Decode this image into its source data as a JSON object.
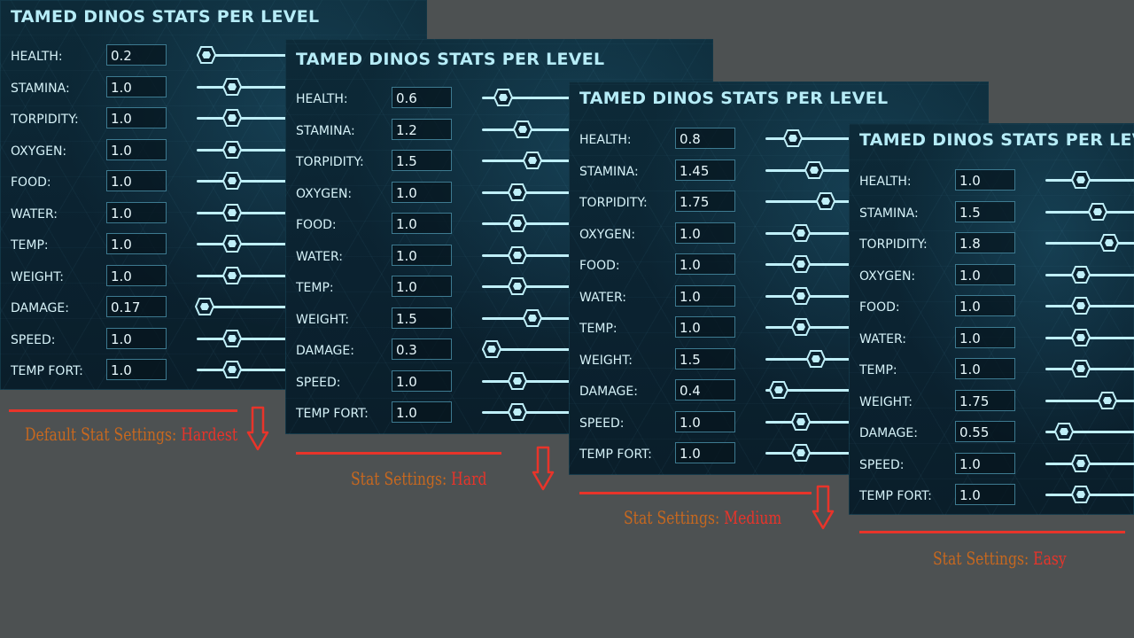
{
  "panels": [
    {
      "title": "TAMED DINOS STATS PER LEVEL",
      "caption_prefix": "Default Stat Settings: ",
      "difficulty": "Hardest",
      "stats": [
        {
          "label": "HEALTH:",
          "value": "0.2",
          "level": 0.1
        },
        {
          "label": "STAMINA:",
          "value": "1.0",
          "level": 0.36
        },
        {
          "label": "TORPIDITY:",
          "value": "1.0",
          "level": 0.36
        },
        {
          "label": "OXYGEN:",
          "value": "1.0",
          "level": 0.36
        },
        {
          "label": "FOOD:",
          "value": "1.0",
          "level": 0.36
        },
        {
          "label": "WATER:",
          "value": "1.0",
          "level": 0.36
        },
        {
          "label": "TEMP:",
          "value": "1.0",
          "level": 0.36
        },
        {
          "label": "WEIGHT:",
          "value": "1.0",
          "level": 0.36
        },
        {
          "label": "DAMAGE:",
          "value": "0.17",
          "level": 0.08
        },
        {
          "label": "SPEED:",
          "value": "1.0",
          "level": 0.36
        },
        {
          "label": "TEMP FORT:",
          "value": "1.0",
          "level": 0.36
        }
      ]
    },
    {
      "title": "TAMED DINOS STATS PER LEVEL",
      "caption_prefix": "Stat Settings: ",
      "difficulty": "Hard",
      "stats": [
        {
          "label": "HEALTH:",
          "value": "0.6",
          "level": 0.22
        },
        {
          "label": "STAMINA:",
          "value": "1.2",
          "level": 0.42
        },
        {
          "label": "TORPIDITY:",
          "value": "1.5",
          "level": 0.52
        },
        {
          "label": "OXYGEN:",
          "value": "1.0",
          "level": 0.36
        },
        {
          "label": "FOOD:",
          "value": "1.0",
          "level": 0.36
        },
        {
          "label": "WATER:",
          "value": "1.0",
          "level": 0.36
        },
        {
          "label": "TEMP:",
          "value": "1.0",
          "level": 0.36
        },
        {
          "label": "WEIGHT:",
          "value": "1.5",
          "level": 0.52
        },
        {
          "label": "DAMAGE:",
          "value": "0.3",
          "level": 0.1
        },
        {
          "label": "SPEED:",
          "value": "1.0",
          "level": 0.36
        },
        {
          "label": "TEMP FORT:",
          "value": "1.0",
          "level": 0.36
        }
      ]
    },
    {
      "title": "TAMED DINOS STATS PER LEVEL",
      "caption_prefix": "Stat Settings: ",
      "difficulty": "Medium",
      "stats": [
        {
          "label": "HEALTH:",
          "value": "0.8",
          "level": 0.28
        },
        {
          "label": "STAMINA:",
          "value": "1.45",
          "level": 0.5
        },
        {
          "label": "TORPIDITY:",
          "value": "1.75",
          "level": 0.62
        },
        {
          "label": "OXYGEN:",
          "value": "1.0",
          "level": 0.36
        },
        {
          "label": "FOOD:",
          "value": "1.0",
          "level": 0.36
        },
        {
          "label": "WATER:",
          "value": "1.0",
          "level": 0.36
        },
        {
          "label": "TEMP:",
          "value": "1.0",
          "level": 0.36
        },
        {
          "label": "WEIGHT:",
          "value": "1.5",
          "level": 0.52
        },
        {
          "label": "DAMAGE:",
          "value": "0.4",
          "level": 0.14
        },
        {
          "label": "SPEED:",
          "value": "1.0",
          "level": 0.36
        },
        {
          "label": "TEMP FORT:",
          "value": "1.0",
          "level": 0.36
        }
      ]
    },
    {
      "title": "TAMED DINOS STATS PER LEVEL",
      "caption_prefix": "Stat Settings: ",
      "difficulty": "Easy",
      "stats": [
        {
          "label": "HEALTH:",
          "value": "1.0",
          "level": 0.36
        },
        {
          "label": "STAMINA:",
          "value": "1.5",
          "level": 0.54
        },
        {
          "label": "TORPIDITY:",
          "value": "1.8",
          "level": 0.65
        },
        {
          "label": "OXYGEN:",
          "value": "1.0",
          "level": 0.36
        },
        {
          "label": "FOOD:",
          "value": "1.0",
          "level": 0.36
        },
        {
          "label": "WATER:",
          "value": "1.0",
          "level": 0.36
        },
        {
          "label": "TEMP:",
          "value": "1.0",
          "level": 0.36
        },
        {
          "label": "WEIGHT:",
          "value": "1.75",
          "level": 0.64
        },
        {
          "label": "DAMAGE:",
          "value": "0.55",
          "level": 0.19
        },
        {
          "label": "SPEED:",
          "value": "1.0",
          "level": 0.36
        },
        {
          "label": "TEMP FORT:",
          "value": "1.0",
          "level": 0.36
        }
      ]
    }
  ],
  "colors": {
    "title": "#b6ecf7",
    "caption": "#c7681f",
    "difficulty": "#e8342a",
    "slider": "#bfeff8"
  }
}
